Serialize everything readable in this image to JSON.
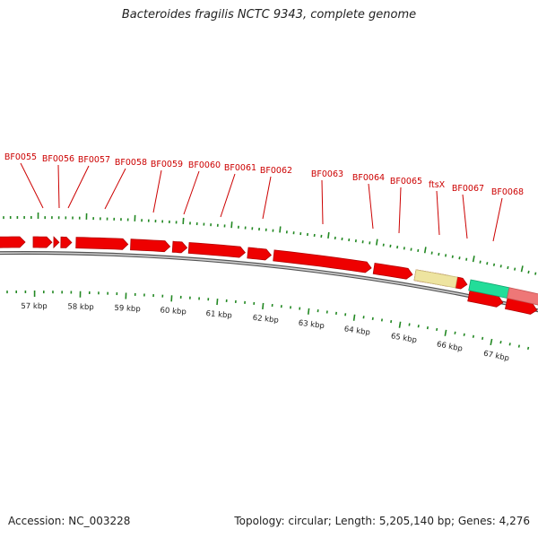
{
  "title": "Bacteroides fragilis NCTC 9343, complete genome",
  "footer": {
    "accession": "Accession: NC_003228",
    "summary": "Topology: circular; Length: 5,205,140 bp; Genes: 4,276"
  },
  "colors": {
    "cds": "#ee0000",
    "cds_edge": "#b30000",
    "ftsx_feature": "#eee4a0",
    "green_feature": "#22dd99",
    "pink_feature": "#ee7777",
    "label": "#cc0000",
    "tick": "#228822",
    "backbone": "#888888"
  },
  "gene_labels": [
    "BF0055",
    "BF0056",
    "BF0057",
    "BF0058",
    "BF0059",
    "BF0060",
    "BF0061",
    "BF0062",
    "BF0063",
    "BF0064",
    "BF0065",
    "ftsX",
    "BF0067",
    "BF0068"
  ],
  "scale_labels": [
    "57 kbp",
    "58 kbp",
    "59 kbp",
    "60 kbp",
    "61 kbp",
    "62 kbp",
    "63 kbp",
    "64 kbp",
    "65 kbp",
    "66 kbp",
    "67 kbp"
  ]
}
